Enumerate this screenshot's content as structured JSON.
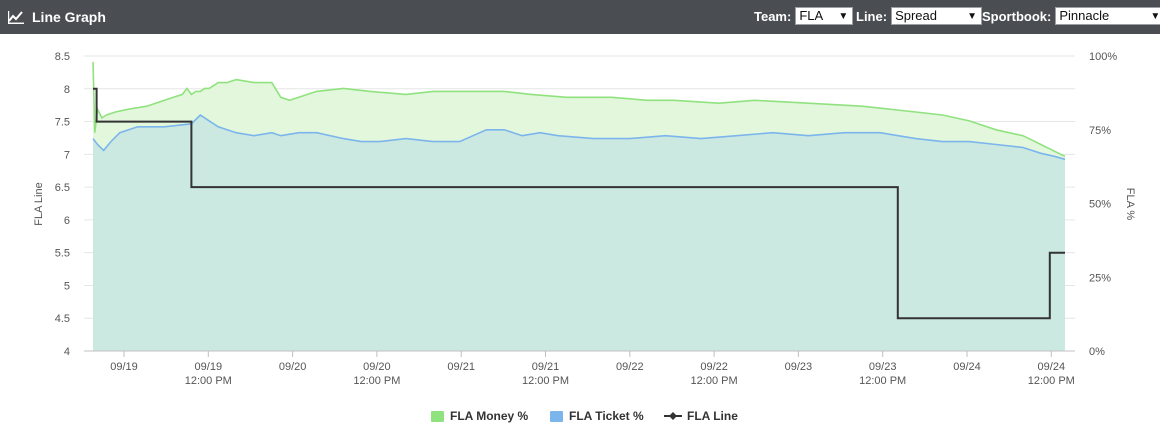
{
  "header": {
    "title": "Line Graph",
    "team_label": "Team:",
    "team_value": "FLA",
    "line_label": "Line:",
    "line_value": "Spread",
    "sportsbook_label": "Sportbook:",
    "sportsbook_value": "Pinnacle"
  },
  "chart_data": {
    "type": "line",
    "ylabel_left": "FLA Line",
    "ylabel_right": "FLA %",
    "left_ticks": [
      "8.5",
      "8",
      "7.5",
      "7",
      "6.5",
      "6",
      "5.5",
      "5",
      "4.5",
      "4"
    ],
    "right_ticks": [
      "100%",
      "75%",
      "50%",
      "25%",
      "0%"
    ],
    "ylim_left": [
      4,
      8.5
    ],
    "ylim_right": [
      0,
      100
    ],
    "x_ticks": [
      {
        "line1": "09/19",
        "line2": ""
      },
      {
        "line1": "09/19",
        "line2": "12:00 PM"
      },
      {
        "line1": "09/20",
        "line2": ""
      },
      {
        "line1": "09/20",
        "line2": "12:00 PM"
      },
      {
        "line1": "09/21",
        "line2": ""
      },
      {
        "line1": "09/21",
        "line2": "12:00 PM"
      },
      {
        "line1": "09/22",
        "line2": ""
      },
      {
        "line1": "09/22",
        "line2": "12:00 PM"
      },
      {
        "line1": "09/23",
        "line2": ""
      },
      {
        "line1": "09/23",
        "line2": "12:00 PM"
      },
      {
        "line1": "09/24",
        "line2": ""
      },
      {
        "line1": "09/24",
        "line2": "12:00 PM"
      }
    ],
    "series": [
      {
        "name": "FLA Money %",
        "type": "area",
        "color": "#90e27f",
        "fill": "#e2f7dc",
        "points": [
          [
            0.0,
            98
          ],
          [
            0.02,
            74
          ],
          [
            0.05,
            82
          ],
          [
            0.1,
            79
          ],
          [
            0.15,
            80
          ],
          [
            0.25,
            81
          ],
          [
            0.4,
            82
          ],
          [
            0.6,
            83
          ],
          [
            0.7,
            84
          ],
          [
            0.8,
            85
          ],
          [
            0.9,
            86
          ],
          [
            1.0,
            87
          ],
          [
            1.05,
            89
          ],
          [
            1.1,
            87
          ],
          [
            1.15,
            88
          ],
          [
            1.2,
            88
          ],
          [
            1.25,
            89
          ],
          [
            1.3,
            89
          ],
          [
            1.4,
            91
          ],
          [
            1.5,
            91
          ],
          [
            1.6,
            92
          ],
          [
            1.8,
            91
          ],
          [
            2.0,
            91
          ],
          [
            2.1,
            86
          ],
          [
            2.2,
            85
          ],
          [
            2.3,
            86
          ],
          [
            2.5,
            88
          ],
          [
            2.8,
            89
          ],
          [
            3.1,
            88
          ],
          [
            3.5,
            87
          ],
          [
            3.8,
            88
          ],
          [
            4.2,
            88
          ],
          [
            4.6,
            88
          ],
          [
            4.9,
            87
          ],
          [
            5.3,
            86
          ],
          [
            5.8,
            86
          ],
          [
            6.2,
            85
          ],
          [
            6.5,
            85
          ],
          [
            7.0,
            84
          ],
          [
            7.4,
            85
          ],
          [
            8.0,
            84
          ],
          [
            8.6,
            83
          ],
          [
            8.9,
            82
          ],
          [
            9.2,
            81
          ],
          [
            9.5,
            80
          ],
          [
            9.8,
            78
          ],
          [
            10.1,
            75
          ],
          [
            10.4,
            73
          ],
          [
            10.6,
            70
          ],
          [
            10.8,
            67
          ],
          [
            10.87,
            66
          ]
        ]
      },
      {
        "name": "FLA Ticket %",
        "type": "area",
        "color": "#7cb5ec",
        "fill": "#cce9e1",
        "points": [
          [
            0.0,
            72
          ],
          [
            0.05,
            70
          ],
          [
            0.12,
            68
          ],
          [
            0.2,
            71
          ],
          [
            0.3,
            74
          ],
          [
            0.5,
            76
          ],
          [
            0.8,
            76
          ],
          [
            1.1,
            77
          ],
          [
            1.2,
            80
          ],
          [
            1.3,
            78
          ],
          [
            1.4,
            76
          ],
          [
            1.6,
            74
          ],
          [
            1.8,
            73
          ],
          [
            2.0,
            74
          ],
          [
            2.1,
            73
          ],
          [
            2.3,
            74
          ],
          [
            2.5,
            74
          ],
          [
            2.8,
            72
          ],
          [
            3.0,
            71
          ],
          [
            3.2,
            71
          ],
          [
            3.5,
            72
          ],
          [
            3.8,
            71
          ],
          [
            4.1,
            71
          ],
          [
            4.4,
            75
          ],
          [
            4.6,
            75
          ],
          [
            4.8,
            73
          ],
          [
            5.0,
            74
          ],
          [
            5.2,
            73
          ],
          [
            5.6,
            72
          ],
          [
            6.0,
            72
          ],
          [
            6.4,
            73
          ],
          [
            6.8,
            72
          ],
          [
            7.2,
            73
          ],
          [
            7.6,
            74
          ],
          [
            8.0,
            73
          ],
          [
            8.4,
            74
          ],
          [
            8.8,
            74
          ],
          [
            9.2,
            72
          ],
          [
            9.5,
            71
          ],
          [
            9.8,
            71
          ],
          [
            10.1,
            70
          ],
          [
            10.4,
            69
          ],
          [
            10.6,
            67
          ],
          [
            10.75,
            66
          ],
          [
            10.87,
            65
          ]
        ]
      },
      {
        "name": "FLA Line",
        "type": "line",
        "color": "#333333",
        "points": [
          [
            0.0,
            8.0
          ],
          [
            0.04,
            8.0
          ],
          [
            0.04,
            7.5
          ],
          [
            1.0,
            7.5
          ],
          [
            1.1,
            7.5
          ],
          [
            1.1,
            6.5
          ],
          [
            9.0,
            6.5
          ],
          [
            9.0,
            4.5
          ],
          [
            10.7,
            4.5
          ],
          [
            10.7,
            5.5
          ],
          [
            10.87,
            5.5
          ]
        ]
      }
    ],
    "legend": [
      "FLA Money %",
      "FLA Ticket %",
      "FLA Line"
    ],
    "legend_placement": "bottom-center",
    "grid": true
  }
}
